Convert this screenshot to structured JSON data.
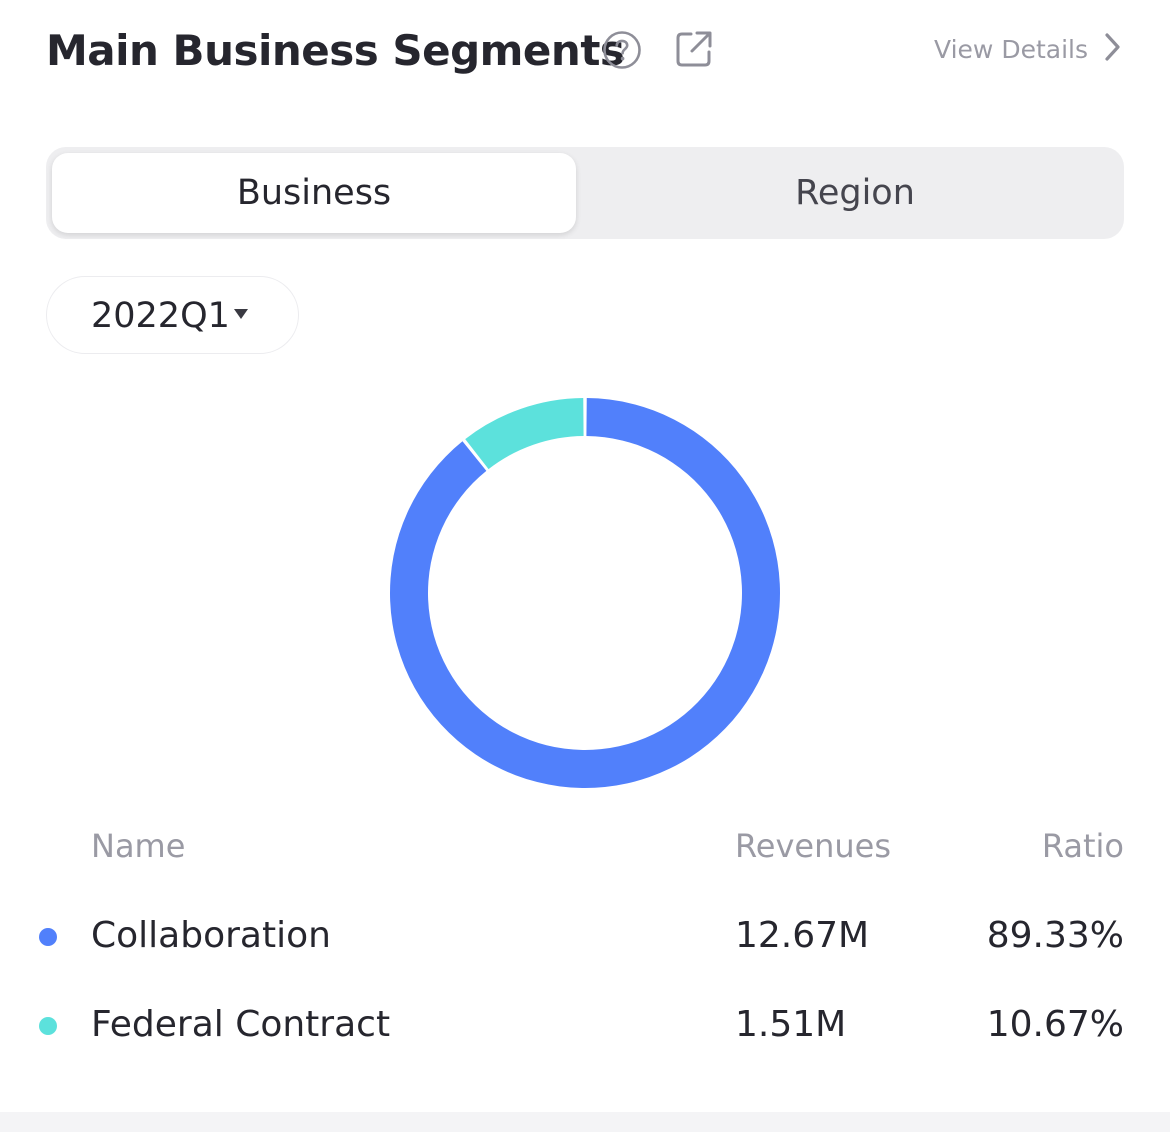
{
  "header": {
    "title": "Main Business Segments",
    "view_details": "View Details"
  },
  "tabs": [
    {
      "label": "Business",
      "active": true
    },
    {
      "label": "Region",
      "active": false
    }
  ],
  "period": {
    "selected": "2022Q1"
  },
  "table": {
    "columns": [
      "Name",
      "Revenues",
      "Ratio"
    ],
    "rows": [
      {
        "name": "Collaboration",
        "revenue": "12.67M",
        "ratio": "89.33%",
        "color": "#5180fb"
      },
      {
        "name": "Federal Contract",
        "revenue": "1.51M",
        "ratio": "10.67%",
        "color": "#5ce1dc"
      }
    ]
  },
  "chart_data": {
    "type": "pie",
    "variant": "donut",
    "title": "",
    "categories": [
      "Collaboration",
      "Federal Contract"
    ],
    "values": [
      89.33,
      10.67
    ],
    "colors": [
      "#5180fb",
      "#5ce1dc"
    ]
  }
}
